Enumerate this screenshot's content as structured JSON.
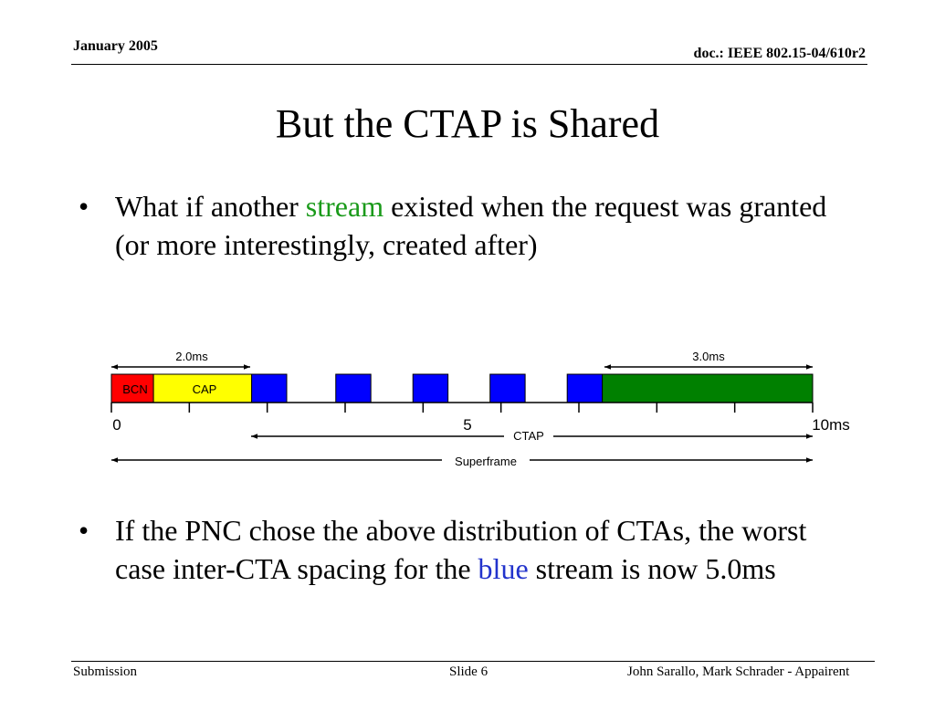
{
  "header": {
    "date": "January 2005",
    "doc": "doc.: IEEE 802.15-04/610r2"
  },
  "title": "But the CTAP is Shared",
  "bullets": {
    "b1": {
      "dot": "•",
      "pre": "What if another ",
      "highlight": "stream",
      "post": " existed when the request was granted (or more interestingly, created after)"
    },
    "b2": {
      "dot": "•",
      "pre": "If the PNC chose the above distribution of CTAs, the worst case inter-CTA spacing for the ",
      "highlight": "blue",
      "post": " stream is now 5.0ms"
    }
  },
  "diagram": {
    "labels": {
      "span_left": "2.0ms",
      "span_right": "3.0ms",
      "bcn": "BCN",
      "cap": "CAP",
      "tick0": "0",
      "tick5": "5",
      "tick10": "10ms",
      "ctap": "CTAP",
      "superframe": "Superframe"
    },
    "colors": {
      "bcn": "#ff0000",
      "cap": "#ffff00",
      "blue_cta": "#0000ff",
      "green_cta": "#008000"
    },
    "timeline": {
      "start_ms": 0,
      "end_ms": 10,
      "bcn_ms": [
        0,
        0.6
      ],
      "cap_ms": [
        0.6,
        2.0
      ],
      "blue_ctas_ms": [
        [
          2.0,
          2.5
        ],
        [
          3.2,
          3.7
        ],
        [
          4.3,
          4.8
        ],
        [
          5.4,
          5.9
        ],
        [
          6.5,
          7.0
        ]
      ],
      "green_cta_ms": [
        7.0,
        10.0
      ]
    }
  },
  "footer": {
    "left": "Submission",
    "mid": "Slide 6",
    "right": "John Sarallo, Mark Schrader - Appairent"
  }
}
